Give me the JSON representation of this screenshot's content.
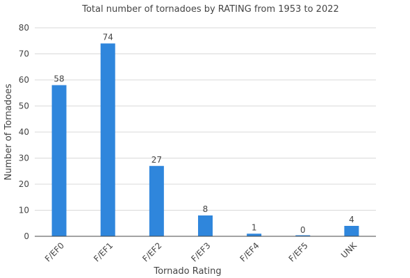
{
  "chart_data": {
    "type": "bar",
    "title": "Total number of tornadoes by RATING from 1953 to 2022",
    "xlabel": "Tornado Rating",
    "ylabel": "Number of Tornadoes",
    "categories": [
      "F/EF0",
      "F/EF1",
      "F/EF2",
      "F/EF3",
      "F/EF4",
      "F/EF5",
      "UNK"
    ],
    "values": [
      58,
      74,
      27,
      8,
      1,
      0,
      4
    ],
    "ylim": [
      0,
      80
    ],
    "yticks": [
      0,
      10,
      20,
      30,
      40,
      50,
      60,
      70,
      80
    ],
    "grid": true,
    "legend": "none",
    "bar_color": "#2f86dc",
    "show_data_labels": true
  }
}
